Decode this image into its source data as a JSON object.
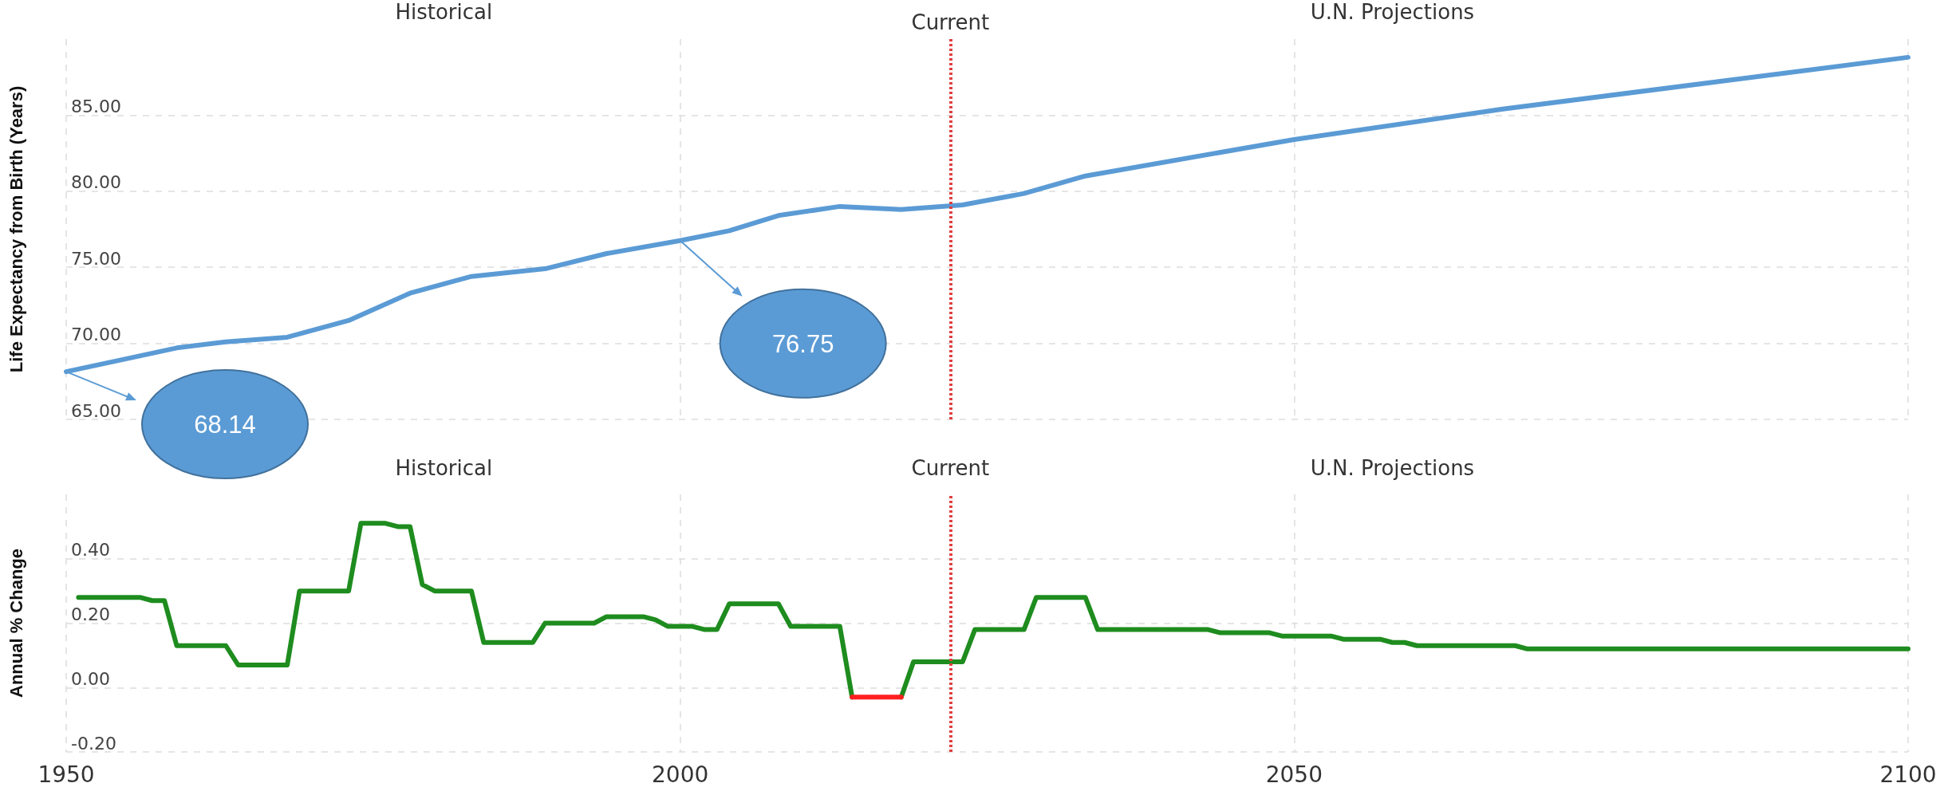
{
  "chart_data": [
    {
      "type": "line",
      "ylabel": "Life Expectancy from Birth (Years)",
      "series": [
        {
          "color": "#5b9bd5",
          "x": [
            1950,
            1955,
            1959,
            1963,
            1968,
            1973,
            1978,
            1983,
            1989,
            1994,
            2000,
            2004,
            2008,
            2013,
            2018,
            2023,
            2028,
            2033,
            2050,
            2067,
            2100
          ],
          "values": [
            68.14,
            69.0,
            69.7,
            70.1,
            70.4,
            71.5,
            73.3,
            74.4,
            74.9,
            75.9,
            76.75,
            77.4,
            78.4,
            79.0,
            78.8,
            79.1,
            79.85,
            81.0,
            83.4,
            85.4,
            88.8
          ]
        }
      ],
      "xlim": [
        1950,
        2100
      ],
      "xticks": [
        1950,
        2000,
        2050,
        2100
      ],
      "ylim": [
        65,
        90
      ],
      "yticks": [
        {
          "value": 65,
          "label": "65.00"
        },
        {
          "value": 70,
          "label": "70.00"
        },
        {
          "value": 75,
          "label": "75.00"
        },
        {
          "value": 80,
          "label": "80.00"
        },
        {
          "value": 85,
          "label": "85.00"
        }
      ],
      "tick_labels": "y",
      "grid": true,
      "marker": "none",
      "ref_lines": [
        {
          "axis": "x",
          "value": 2022,
          "label": "Current",
          "color": "#e04040",
          "line_style": "dotted"
        }
      ],
      "annotations": [
        "Historical",
        "U.N. Projections",
        "68.14",
        "76.75"
      ]
    },
    {
      "type": "line",
      "ylabel": "Annual % Change",
      "series": [
        {
          "color": "#1e8c1e",
          "x": [
            1951,
            1956,
            1957,
            1958,
            1959,
            1963,
            1964,
            1968,
            1969,
            1973,
            1974,
            1976,
            1977,
            1978,
            1979,
            1980,
            1983,
            1984,
            1988,
            1989,
            1993,
            1994,
            1997,
            1998,
            1999,
            2001,
            2002,
            2003,
            2004,
            2008,
            2009,
            2013,
            2014,
            2016,
            2018,
            2019,
            2023,
            2024,
            2028,
            2029,
            2033,
            2034,
            2043,
            2044,
            2048,
            2049,
            2053,
            2054,
            2057,
            2058,
            2059,
            2060,
            2068,
            2069,
            2100
          ],
          "values": [
            0.28,
            0.28,
            0.27,
            0.27,
            0.13,
            0.13,
            0.07,
            0.07,
            0.3,
            0.3,
            0.51,
            0.51,
            0.5,
            0.5,
            0.32,
            0.3,
            0.3,
            0.14,
            0.14,
            0.2,
            0.2,
            0.22,
            0.22,
            0.21,
            0.19,
            0.19,
            0.18,
            0.18,
            0.26,
            0.26,
            0.19,
            0.19,
            -0.03,
            null,
            -0.03,
            0.08,
            0.08,
            0.18,
            0.18,
            0.28,
            0.28,
            0.18,
            0.18,
            0.17,
            0.17,
            0.16,
            0.16,
            0.15,
            0.15,
            0.14,
            0.14,
            0.13,
            0.13,
            0.12,
            0.12
          ]
        },
        {
          "color": "#ff2020",
          "x": [
            2014,
            2018
          ],
          "values": [
            -0.03,
            -0.03
          ]
        }
      ],
      "xlim": [
        1950,
        2100
      ],
      "xticks": [
        1950,
        2000,
        2050,
        2100
      ],
      "ylim": [
        -0.2,
        0.6
      ],
      "yticks": [
        {
          "value": -0.2,
          "label": "-0.20"
        },
        {
          "value": 0,
          "label": "0.00"
        },
        {
          "value": 0.2,
          "label": "0.20"
        },
        {
          "value": 0.4,
          "label": "0.40"
        }
      ],
      "grid": true,
      "marker": "none",
      "ref_lines": [
        {
          "axis": "x",
          "value": 2022,
          "label": "Current",
          "color": "#e04040",
          "line_style": "dotted"
        }
      ],
      "annotations": [
        "Historical",
        "U.N. Projections"
      ]
    }
  ]
}
